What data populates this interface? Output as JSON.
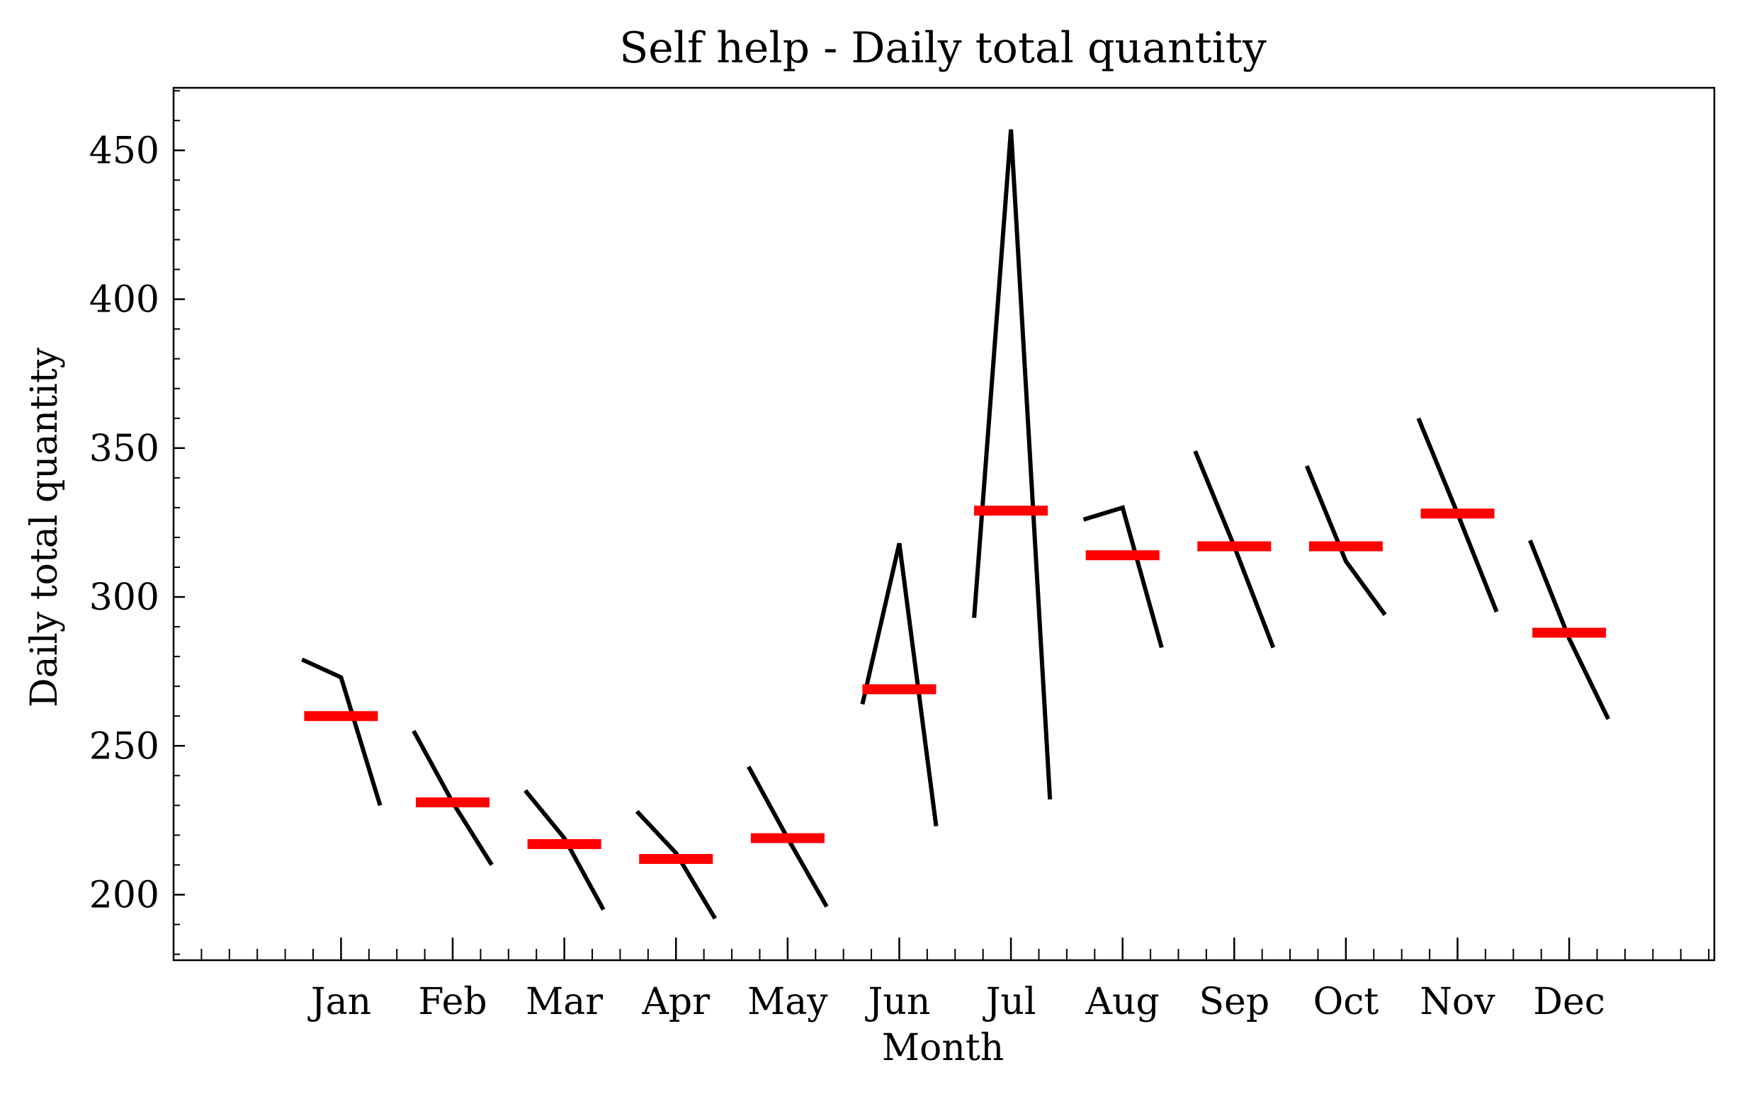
{
  "chart_data": {
    "type": "line",
    "title": "Self help - Daily total quantity",
    "xlabel": "Month",
    "ylabel": "Daily total quantity",
    "ylim": [
      178,
      471
    ],
    "xlim": [
      -1.5,
      12.3
    ],
    "yticks": [
      200,
      250,
      300,
      350,
      400,
      450
    ],
    "categories": [
      "Jan",
      "Feb",
      "Mar",
      "Apr",
      "May",
      "Jun",
      "Jul",
      "Aug",
      "Sep",
      "Oct",
      "Nov",
      "Dec"
    ],
    "series": [
      {
        "name": "Jan",
        "x": [
          -0.35,
          -0.0,
          0.35
        ],
        "values": [
          279,
          273,
          230
        ]
      },
      {
        "name": "Feb",
        "x": [
          0.65,
          1.0,
          1.35
        ],
        "values": [
          255,
          231,
          210
        ]
      },
      {
        "name": "Mar",
        "x": [
          1.65,
          2.0,
          2.35
        ],
        "values": [
          235,
          219,
          195
        ]
      },
      {
        "name": "Apr",
        "x": [
          2.65,
          3.0,
          3.35
        ],
        "values": [
          228,
          214,
          192
        ]
      },
      {
        "name": "May",
        "x": [
          3.65,
          4.0,
          4.35
        ],
        "values": [
          243,
          219,
          196
        ]
      },
      {
        "name": "Jun",
        "x": [
          3.67,
          4.0,
          4.33
        ],
        "values": [
          264,
          318,
          223
        ],
        "offset": 1
      },
      {
        "name": "Jul",
        "x": [
          5.67,
          6.0,
          6.35
        ],
        "values": [
          293,
          457,
          232
        ]
      },
      {
        "name": "Aug",
        "x": [
          6.65,
          7.0,
          7.35
        ],
        "values": [
          326,
          330,
          283
        ]
      },
      {
        "name": "Sep",
        "x": [
          7.65,
          8.0,
          8.35
        ],
        "values": [
          349,
          317,
          283
        ]
      },
      {
        "name": "Oct",
        "x": [
          8.65,
          9.0,
          9.35
        ],
        "values": [
          344,
          312,
          294
        ]
      },
      {
        "name": "Nov",
        "x": [
          9.65,
          10.0,
          10.35
        ],
        "values": [
          360,
          328,
          295
        ]
      },
      {
        "name": "Dec",
        "x": [
          10.65,
          11.0,
          11.35
        ],
        "values": [
          319,
          286,
          259
        ]
      }
    ],
    "means": [
      260,
      231,
      217,
      212,
      219,
      269,
      329,
      314,
      317,
      317,
      328,
      288
    ],
    "line_color": "#000000",
    "mean_color": "#ff0000",
    "grid": false
  }
}
